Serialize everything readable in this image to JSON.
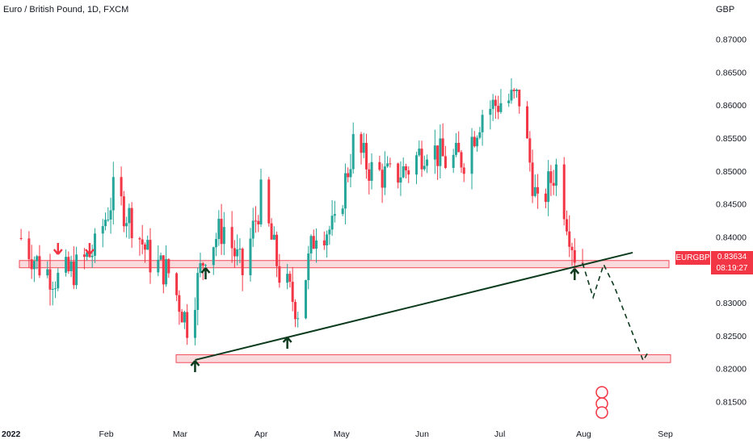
{
  "chart_title": "Euro / British Pound, 1D, FXCM",
  "currency_label": "GBP",
  "symbol_tag": "EURGBP",
  "last_price": "0.83634",
  "countdown": "08:19:27",
  "colors": {
    "up": "#26a69a",
    "down": "#f23645",
    "zone_fill": "#f9d7da",
    "trendline": "#0d3b1e",
    "arrow_up": "#0d3b1e",
    "arrow_down": "#f23645",
    "axis_text": "#131722"
  },
  "chart_data": {
    "type": "candlestick",
    "ylim": [
      0.811,
      0.8735
    ],
    "y_ticks": [
      "0.87000",
      "0.86500",
      "0.86000",
      "0.85500",
      "0.85000",
      "0.84500",
      "0.84000",
      "0.83500",
      "0.83000",
      "0.82500",
      "0.82000",
      "0.81500"
    ],
    "x_ticks": [
      "2022",
      "Feb",
      "Mar",
      "Apr",
      "May",
      "Jun",
      "Jul",
      "Aug",
      "Sep"
    ],
    "support_zones": [
      [
        0.8353,
        0.8364
      ],
      [
        0.8209,
        0.8221
      ]
    ],
    "trendline": [
      [
        "2022-03-07",
        0.8213
      ],
      [
        "2022-08-20",
        0.8376
      ]
    ],
    "projected_path": [
      [
        "2022-08-01",
        0.836
      ],
      [
        "2022-08-05",
        0.8308
      ],
      [
        "2022-08-09",
        0.8358
      ],
      [
        "2022-08-13",
        0.8325
      ],
      [
        "2022-08-24",
        0.8212
      ],
      [
        "2022-08-26",
        0.8226
      ]
    ],
    "up_arrows": [
      "2022-03-07",
      "2022-03-11",
      "2022-04-11",
      "2022-07-29"
    ],
    "down_arrows": [
      "2022-01-14",
      "2022-01-26"
    ],
    "candles_sampled": [
      {
        "d": "2021-12-31",
        "c": 0.8398
      },
      {
        "d": "2022-01-07",
        "c": 0.8356
      },
      {
        "d": "2022-01-14",
        "c": 0.8336
      },
      {
        "d": "2022-01-21",
        "c": 0.8352
      },
      {
        "d": "2022-01-28",
        "c": 0.838
      },
      {
        "d": "2022-02-04",
        "c": 0.8465
      },
      {
        "d": "2022-02-11",
        "c": 0.8425
      },
      {
        "d": "2022-02-18",
        "c": 0.8365
      },
      {
        "d": "2022-02-25",
        "c": 0.8345
      },
      {
        "d": "2022-03-04",
        "c": 0.8268
      },
      {
        "d": "2022-03-11",
        "c": 0.838
      },
      {
        "d": "2022-03-18",
        "c": 0.8415
      },
      {
        "d": "2022-03-25",
        "c": 0.8345
      },
      {
        "d": "2022-04-01",
        "c": 0.846
      },
      {
        "d": "2022-04-08",
        "c": 0.8345
      },
      {
        "d": "2022-04-15",
        "c": 0.829
      },
      {
        "d": "2022-04-22",
        "c": 0.8415
      },
      {
        "d": "2022-04-29",
        "c": 0.841
      },
      {
        "d": "2022-05-06",
        "c": 0.854
      },
      {
        "d": "2022-05-13",
        "c": 0.85
      },
      {
        "d": "2022-05-20",
        "c": 0.849
      },
      {
        "d": "2022-05-27",
        "c": 0.8505
      },
      {
        "d": "2022-06-03",
        "c": 0.854
      },
      {
        "d": "2022-06-10",
        "c": 0.8515
      },
      {
        "d": "2022-06-17",
        "c": 0.852
      },
      {
        "d": "2022-06-24",
        "c": 0.859
      },
      {
        "d": "2022-07-01",
        "c": 0.8605
      },
      {
        "d": "2022-07-08",
        "c": 0.861
      },
      {
        "d": "2022-07-15",
        "c": 0.844
      },
      {
        "d": "2022-07-22",
        "c": 0.8505
      },
      {
        "d": "2022-07-29",
        "c": 0.8375
      },
      {
        "d": "2022-08-02",
        "c": 0.8363
      }
    ]
  }
}
